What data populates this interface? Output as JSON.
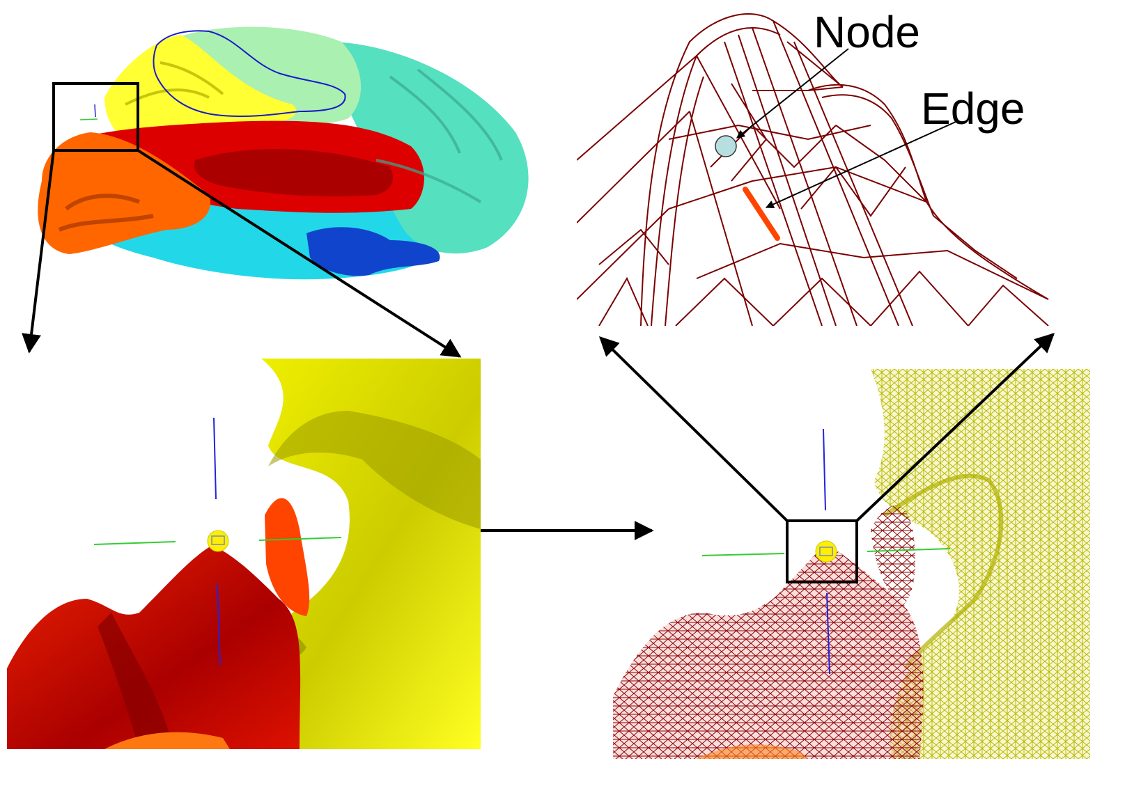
{
  "labels": {
    "node": "Node",
    "edge": "Edge"
  },
  "colors": {
    "frontal": "#ffff33",
    "parietal": "#aaf0b0",
    "occipital": "#55e0c0",
    "cingulate": "#dd0000",
    "temporal": "#22d8e8",
    "insula_blue": "#1144cc",
    "orbital": "#ff6600",
    "wire_red": "#7a0000",
    "wire_yellow": "#d8d800",
    "node_fill": "#b8dfe0",
    "edge_highlight": "#ff4400",
    "arrow": "#000000"
  },
  "panels": [
    {
      "name": "brain-surface-overview",
      "description_icon": "brain-surface-icon"
    },
    {
      "name": "zoomed-surface-render",
      "description_icon": "surface-closeup-icon"
    },
    {
      "name": "zoomed-wireframe-mesh",
      "description_icon": "mesh-closeup-icon"
    },
    {
      "name": "mesh-detail-node-edge",
      "description_icon": "mesh-detail-icon"
    }
  ]
}
